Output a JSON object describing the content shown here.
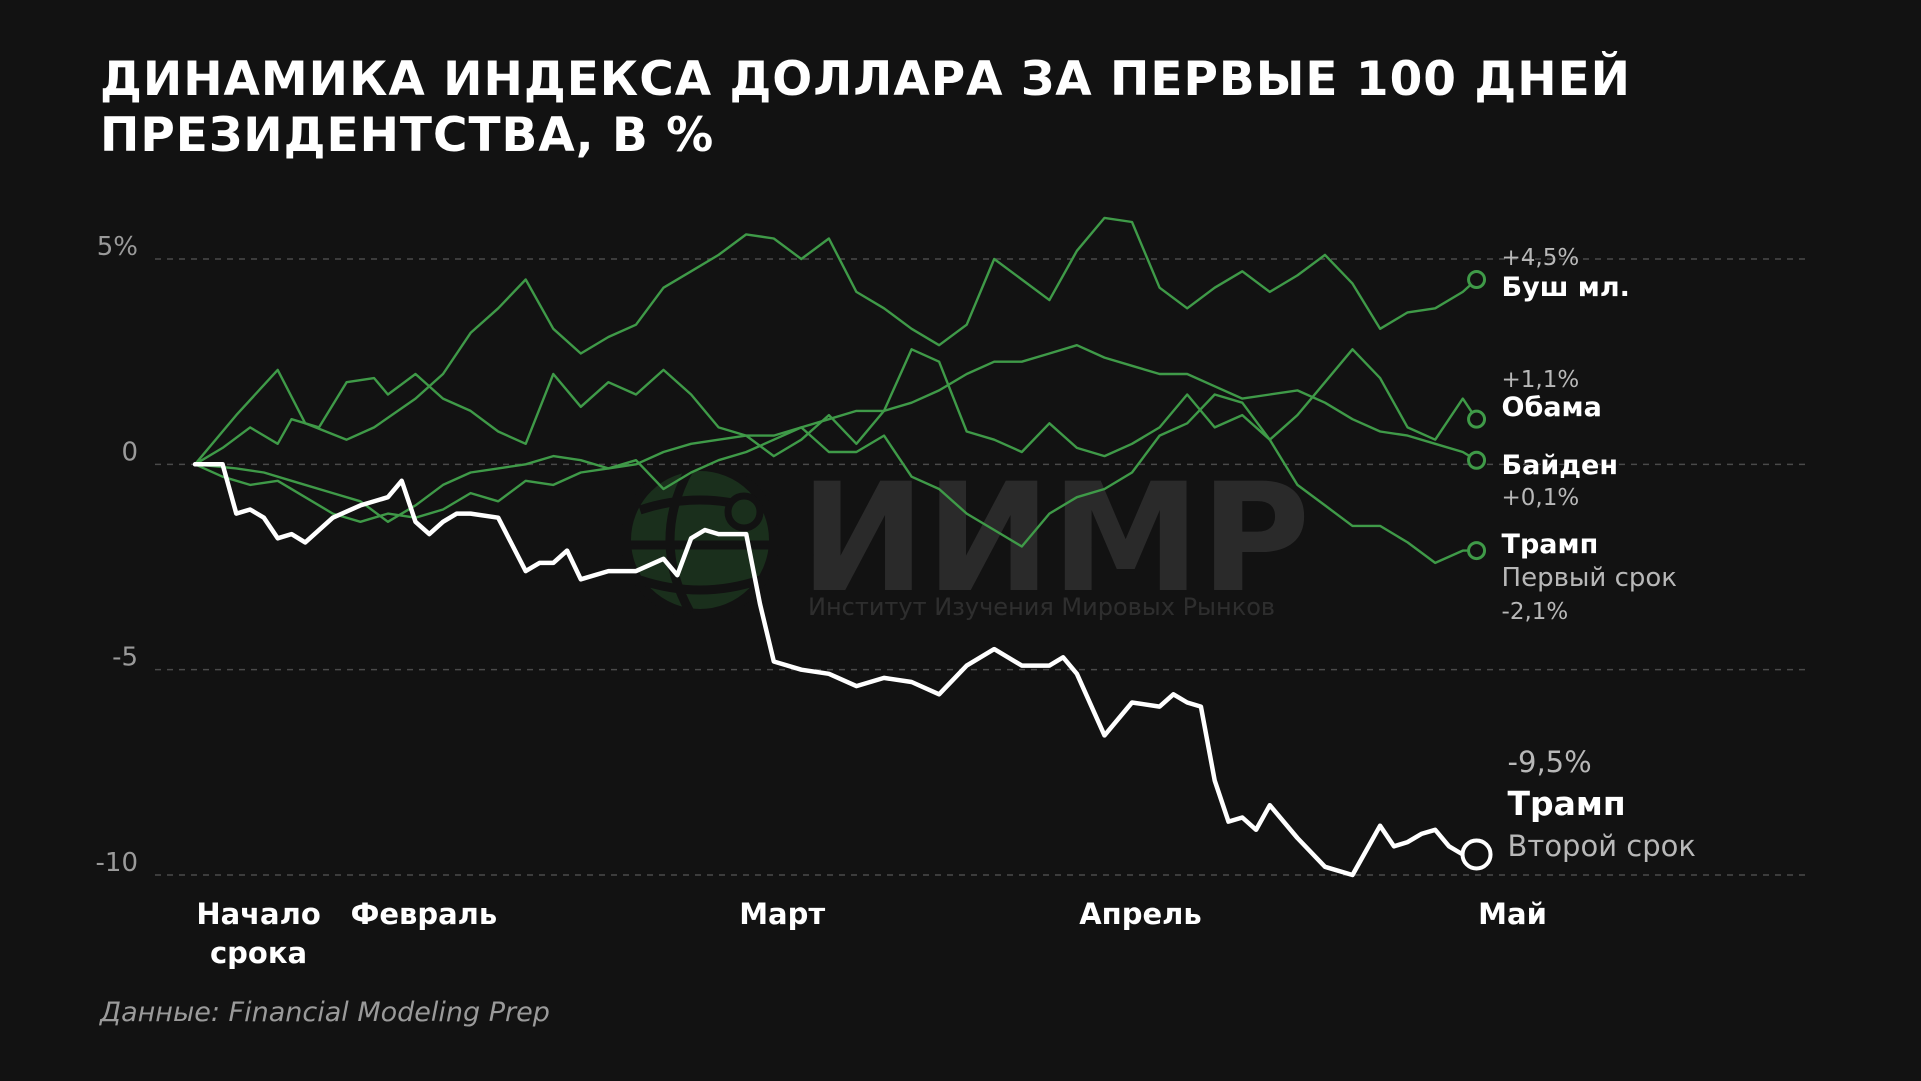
{
  "title_lines": [
    "ДИНАМИКА ИНДЕКСА ДОЛЛАРА ЗА ПЕРВЫЕ 100 ДНЕЙ",
    "ПРЕЗИДЕНТСТВА, В %"
  ],
  "source": "Данные: Financial Modeling Prep",
  "watermark": {
    "name": "ИИМР",
    "subtitle": "Институт Изучения Мировых Рынков"
  },
  "colors": {
    "background": "#121212",
    "green": "#3f9a48",
    "trump2": "#ffffff",
    "grid": "#4a4a4a"
  },
  "chart_data": {
    "type": "line",
    "title": "ДИНАМИКА ИНДЕКСА ДОЛЛАРА ЗА ПЕРВЫЕ 100 ДНЕЙ ПРЕЗИДЕНТСТВА, В %",
    "xlabel": "",
    "ylabel": "",
    "ylim": [
      -10.2,
      6.1
    ],
    "xlim": [
      0,
      100
    ],
    "y_ticks": [
      {
        "value": 5,
        "label": "5%"
      },
      {
        "value": 0,
        "label": "0"
      },
      {
        "value": -5,
        "label": "-5"
      },
      {
        "value": -10,
        "label": "-10"
      }
    ],
    "x_ticks": [
      {
        "value": 2,
        "lines": [
          "Начало",
          "срока"
        ]
      },
      {
        "value": 14,
        "lines": [
          "Февраль"
        ]
      },
      {
        "value": 40,
        "lines": [
          "Март"
        ]
      },
      {
        "value": 66,
        "lines": [
          "Апрель"
        ]
      },
      {
        "value": 93,
        "lines": [
          "Май"
        ]
      }
    ],
    "grid": "horizontal dashed",
    "series": [
      {
        "name": "Буш мл.",
        "value_label": "+4,5%",
        "sub_label": "",
        "color": "#3f9a48",
        "x": [
          0,
          3,
          6,
          8,
          11,
          13,
          16,
          18,
          20,
          22,
          24,
          26,
          28,
          30,
          32,
          34,
          36,
          38,
          40,
          42,
          44,
          46,
          48,
          50,
          52,
          54,
          56,
          58,
          60,
          62,
          64,
          66,
          68,
          70,
          72,
          74,
          76,
          78,
          80,
          82,
          84,
          86,
          88,
          90,
          92,
          93
        ],
        "y": [
          0,
          1.2,
          2.3,
          1.0,
          0.6,
          0.9,
          1.6,
          2.2,
          3.2,
          3.8,
          4.5,
          3.3,
          2.7,
          3.1,
          3.4,
          4.3,
          4.7,
          5.1,
          5.6,
          5.5,
          5.0,
          5.5,
          4.2,
          3.8,
          3.3,
          2.9,
          3.4,
          5.0,
          4.5,
          4.0,
          5.2,
          6.0,
          5.9,
          4.3,
          3.8,
          4.3,
          4.7,
          4.2,
          4.6,
          5.1,
          4.4,
          3.3,
          3.7,
          3.8,
          4.2,
          4.5
        ]
      },
      {
        "name": "Обама",
        "value_label": "+1,1%",
        "sub_label": "",
        "color": "#3f9a48",
        "x": [
          0,
          2,
          4,
          6,
          7,
          9,
          11,
          13,
          14,
          16,
          18,
          20,
          22,
          24,
          26,
          28,
          30,
          32,
          34,
          36,
          38,
          40,
          42,
          44,
          46,
          48,
          50,
          52,
          54,
          56,
          58,
          60,
          62,
          64,
          66,
          68,
          70,
          72,
          74,
          76,
          78,
          80,
          82,
          84,
          86,
          88,
          90,
          92,
          93
        ],
        "y": [
          0,
          0.4,
          0.9,
          0.5,
          1.1,
          0.9,
          2.0,
          2.1,
          1.7,
          2.2,
          1.6,
          1.3,
          0.8,
          0.5,
          2.2,
          1.4,
          2.0,
          1.7,
          2.3,
          1.7,
          0.9,
          0.7,
          0.2,
          0.6,
          1.2,
          0.5,
          1.3,
          2.8,
          2.5,
          0.8,
          0.6,
          0.3,
          1.0,
          0.4,
          0.2,
          0.5,
          0.9,
          1.7,
          0.9,
          1.2,
          0.6,
          1.2,
          2.0,
          2.8,
          2.1,
          0.9,
          0.6,
          1.6,
          1.1
        ]
      },
      {
        "name": "Байден",
        "value_label": "+0,1%",
        "sub_label": "",
        "color": "#3f9a48",
        "x": [
          0,
          3,
          5,
          7,
          10,
          12,
          14,
          16,
          18,
          20,
          22,
          24,
          26,
          28,
          30,
          32,
          34,
          36,
          38,
          40,
          42,
          44,
          46,
          48,
          50,
          52,
          54,
          56,
          58,
          60,
          62,
          64,
          66,
          68,
          70,
          72,
          74,
          76,
          78,
          80,
          82,
          84,
          86,
          88,
          90,
          92,
          93
        ],
        "y": [
          0,
          -0.1,
          -0.2,
          -0.4,
          -0.7,
          -0.9,
          -1.4,
          -1.0,
          -0.5,
          -0.2,
          -0.1,
          0,
          0.2,
          0.1,
          -0.1,
          0,
          0.3,
          0.5,
          0.6,
          0.7,
          0.7,
          0.9,
          1.1,
          1.3,
          1.3,
          1.5,
          1.8,
          2.2,
          2.5,
          2.5,
          2.7,
          2.9,
          2.6,
          2.4,
          2.2,
          2.2,
          1.9,
          1.6,
          1.7,
          1.8,
          1.5,
          1.1,
          0.8,
          0.7,
          0.5,
          0.3,
          0.1
        ]
      },
      {
        "name": "Трамп",
        "value_label": "-2,1%",
        "sub_label": "Первый срок",
        "color": "#3f9a48",
        "x": [
          0,
          2,
          4,
          6,
          8,
          10,
          12,
          14,
          16,
          18,
          20,
          22,
          24,
          26,
          28,
          30,
          32,
          34,
          36,
          38,
          40,
          42,
          44,
          46,
          48,
          50,
          52,
          54,
          56,
          58,
          60,
          62,
          64,
          66,
          68,
          70,
          72,
          74,
          76,
          78,
          80,
          82,
          84,
          86,
          88,
          90,
          92,
          93
        ],
        "y": [
          0,
          -0.3,
          -0.5,
          -0.4,
          -0.8,
          -1.2,
          -1.4,
          -1.2,
          -1.3,
          -1.1,
          -0.7,
          -0.9,
          -0.4,
          -0.5,
          -0.2,
          -0.1,
          0.1,
          -0.6,
          -0.2,
          0.1,
          0.3,
          0.6,
          0.9,
          0.3,
          0.3,
          0.7,
          -0.3,
          -0.6,
          -1.2,
          -1.6,
          -2.0,
          -1.2,
          -0.8,
          -0.6,
          -0.2,
          0.7,
          1.0,
          1.7,
          1.5,
          0.6,
          -0.5,
          -1.0,
          -1.5,
          -1.5,
          -1.9,
          -2.4,
          -2.1,
          -2.1
        ]
      },
      {
        "name": "Трамп",
        "value_label": "-9,5%",
        "sub_label": "Второй срок",
        "color": "#ffffff",
        "x": [
          0,
          2,
          3,
          4,
          5,
          6,
          7,
          8,
          10,
          12,
          14,
          15,
          16,
          17,
          18,
          19,
          20,
          22,
          24,
          25,
          26,
          27,
          28,
          30,
          32,
          34,
          35,
          36,
          37,
          38,
          39,
          40,
          41,
          42,
          44,
          46,
          48,
          50,
          52,
          54,
          56,
          58,
          60,
          62,
          63,
          64,
          66,
          68,
          70,
          71,
          72,
          73,
          74,
          75,
          76,
          77,
          78,
          80,
          82,
          84,
          85,
          86,
          87,
          88,
          89,
          90,
          91,
          92,
          93
        ],
        "y": [
          0,
          0,
          -1.2,
          -1.1,
          -1.3,
          -1.8,
          -1.7,
          -1.9,
          -1.3,
          -1.0,
          -0.8,
          -0.4,
          -1.4,
          -1.7,
          -1.4,
          -1.2,
          -1.2,
          -1.3,
          -2.6,
          -2.4,
          -2.4,
          -2.1,
          -2.8,
          -2.6,
          -2.6,
          -2.3,
          -2.7,
          -1.8,
          -1.6,
          -1.7,
          -1.7,
          -1.7,
          -3.4,
          -4.8,
          -5.0,
          -5.1,
          -5.4,
          -5.2,
          -5.3,
          -5.6,
          -4.9,
          -4.5,
          -4.9,
          -4.9,
          -4.7,
          -5.1,
          -6.6,
          -5.8,
          -5.9,
          -5.6,
          -5.8,
          -5.9,
          -7.7,
          -8.7,
          -8.6,
          -8.9,
          -8.3,
          -9.1,
          -9.8,
          -10.0,
          -9.4,
          -8.8,
          -9.3,
          -9.2,
          -9.0,
          -8.9,
          -9.3,
          -9.5,
          -9.5
        ]
      }
    ]
  }
}
